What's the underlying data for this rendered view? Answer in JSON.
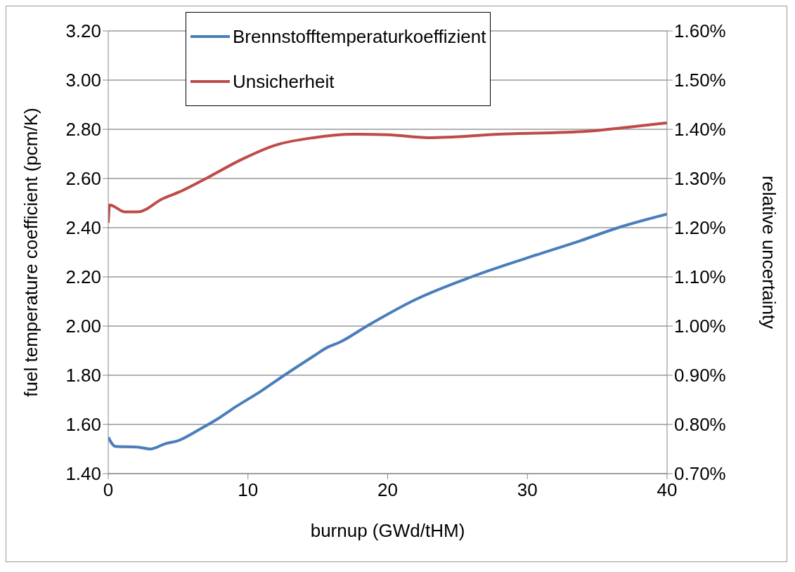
{
  "chart_data": {
    "type": "line",
    "xlabel": "burnup (GWd/tHM)",
    "ylabel": "fuel temperature coefficient (pcm/K)",
    "y2label": "relative uncertainty",
    "xlim": [
      0,
      40
    ],
    "xticks": [
      0,
      10,
      20,
      30,
      40
    ],
    "ylim": [
      1.4,
      3.2
    ],
    "yticks": [
      {
        "value": 1.4,
        "label": "1.40"
      },
      {
        "value": 1.6,
        "label": "1.60"
      },
      {
        "value": 1.8,
        "label": "1.80"
      },
      {
        "value": 2.0,
        "label": "2.00"
      },
      {
        "value": 2.2,
        "label": "2.20"
      },
      {
        "value": 2.4,
        "label": "2.40"
      },
      {
        "value": 2.6,
        "label": "2.60"
      },
      {
        "value": 2.8,
        "label": "2.80"
      },
      {
        "value": 3.0,
        "label": "3.00"
      },
      {
        "value": 3.2,
        "label": "3.20"
      }
    ],
    "y2lim": [
      0.7,
      1.6
    ],
    "y2ticks": [
      {
        "value": 0.7,
        "label": "0.70%"
      },
      {
        "value": 0.8,
        "label": "0.80%"
      },
      {
        "value": 0.9,
        "label": "0.90%"
      },
      {
        "value": 1.0,
        "label": "1.00%"
      },
      {
        "value": 1.1,
        "label": "1.10%"
      },
      {
        "value": 1.2,
        "label": "1.20%"
      },
      {
        "value": 1.3,
        "label": "1.30%"
      },
      {
        "value": 1.4,
        "label": "1.40%"
      },
      {
        "value": 1.5,
        "label": "1.50%"
      },
      {
        "value": 1.6,
        "label": "1.60%"
      }
    ],
    "grid": "y",
    "legend": "top",
    "marker": "none",
    "line_style": "solid",
    "series": [
      {
        "name": "Brennstofftemperaturkoeffizient",
        "color": "#4a7ebb",
        "x": [
          0,
          0.5,
          2.1,
          3.0,
          4.1,
          5.0,
          6.6,
          7.9,
          9.1,
          10.9,
          12.6,
          14.7,
          15.7,
          16.6,
          18.6,
          22.0,
          26.0,
          30.2,
          33.8,
          36.5,
          40
        ],
        "values": [
          1.548,
          1.511,
          1.508,
          1.5,
          1.522,
          1.534,
          1.582,
          1.625,
          1.671,
          1.734,
          1.8,
          1.878,
          1.914,
          1.935,
          2.003,
          2.108,
          2.2,
          2.281,
          2.347,
          2.4,
          2.455
        ]
      },
      {
        "name": "Unsicherheit",
        "color": "#be4b48",
        "axis": "y2",
        "x": [
          0,
          0.1,
          1.2,
          2.1,
          3.9,
          5.2,
          7.0,
          9.5,
          12.0,
          14.7,
          17.5,
          20.0,
          22.9,
          28.0,
          34.3,
          37.1,
          40
        ],
        "values": [
          1.21,
          1.246,
          1.232,
          1.232,
          1.259,
          1.274,
          1.3,
          1.338,
          1.368,
          1.383,
          1.39,
          1.389,
          1.383,
          1.39,
          1.396,
          1.404,
          1.413
        ]
      }
    ]
  }
}
